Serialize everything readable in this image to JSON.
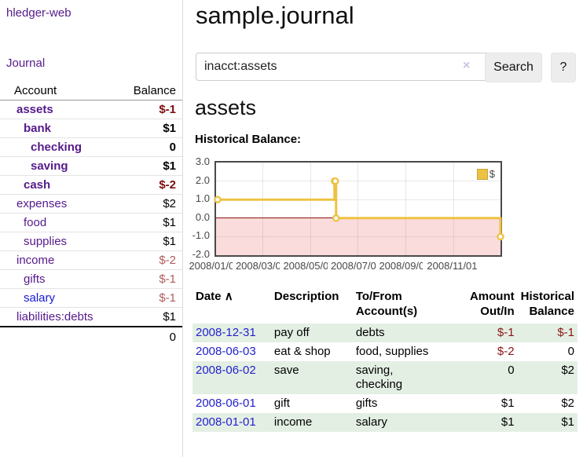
{
  "brand": "hledger-web",
  "nav": {
    "journal": "Journal"
  },
  "sidebar": {
    "headers": {
      "account": "Account",
      "balance": "Balance"
    },
    "accounts": [
      {
        "name": "assets",
        "balance": "$-1"
      },
      {
        "name": "bank",
        "balance": "$1"
      },
      {
        "name": "checking",
        "balance": "0"
      },
      {
        "name": "saving",
        "balance": "$1"
      },
      {
        "name": "cash",
        "balance": "$-2"
      },
      {
        "name": "expenses",
        "balance": "$2"
      },
      {
        "name": "food",
        "balance": "$1"
      },
      {
        "name": "supplies",
        "balance": "$1"
      },
      {
        "name": "income",
        "balance": "$-2"
      },
      {
        "name": "gifts",
        "balance": "$-1"
      },
      {
        "name": "salary",
        "balance": "$-1"
      },
      {
        "name": "liabilities:debts",
        "balance": "$1"
      }
    ],
    "total": "0"
  },
  "header": {
    "title": "sample.journal"
  },
  "search": {
    "value": "inacct:assets",
    "clear": "×",
    "button": "Search",
    "help": "?"
  },
  "account_page": {
    "heading": "assets",
    "chart_label": "Historical Balance:"
  },
  "chart_data": {
    "type": "line",
    "step": true,
    "title": "Historical Balance",
    "series": [
      {
        "name": "$",
        "color": "#edc240",
        "points": [
          [
            "2008-01-01",
            1.0
          ],
          [
            "2008-06-01",
            2.0
          ],
          [
            "2008-06-02",
            2.0
          ],
          [
            "2008-06-03",
            0.0
          ],
          [
            "2008-12-31",
            -1.0
          ]
        ]
      }
    ],
    "x_range": [
      "2008-01-01",
      "2008-12-31"
    ],
    "ylim": [
      -2.0,
      3.0
    ],
    "yticks": [
      3.0,
      2.0,
      1.0,
      0.0,
      -1.0,
      -2.0
    ],
    "ytick_labels": [
      "3.0",
      "2.0",
      "1.0",
      "0.0",
      "-1.0",
      "-2.0"
    ],
    "xticks": [
      "2008-01-01",
      "2008-03-01",
      "2008-05-01",
      "2008-07-01",
      "2008-09-01",
      "2008-11-01"
    ],
    "xtick_labels": [
      "2008/01/01",
      "2008/03/01",
      "2008/05/01",
      "2008/07/01",
      "2008/09/01",
      "2008/11/01"
    ],
    "legend": {
      "label": "$",
      "position": "top-right"
    },
    "grid": true,
    "negative_region_color": "#fbdcdc",
    "zero_line_color": "#8c1010"
  },
  "register": {
    "headers": {
      "date": "Date",
      "sort_indicator": "∧",
      "description": "Description",
      "accounts": "To/From Account(s)",
      "amount": "Amount Out/In",
      "balance": "Historical Balance"
    },
    "rows": [
      {
        "date": "2008-12-31",
        "description": "pay off",
        "accounts": "debts",
        "amount": "$-1",
        "balance": "$-1"
      },
      {
        "date": "2008-06-03",
        "description": "eat & shop",
        "accounts": "food, supplies",
        "amount": "$-2",
        "balance": "0"
      },
      {
        "date": "2008-06-02",
        "description": "save",
        "accounts": "saving, checking",
        "amount": "0",
        "balance": "$2"
      },
      {
        "date": "2008-06-01",
        "description": "gift",
        "accounts": "gifts",
        "amount": "$1",
        "balance": "$2"
      },
      {
        "date": "2008-01-01",
        "description": "income",
        "accounts": "salary",
        "amount": "$1",
        "balance": "$1"
      }
    ]
  },
  "colors": {
    "link_purple": "#551a8b",
    "link_blue": "#2222cc",
    "negative": "#7d0d0d",
    "negative_light": "#b25b5b",
    "row_shade_green": "#e4efe4",
    "series_yellow": "#edc240"
  }
}
